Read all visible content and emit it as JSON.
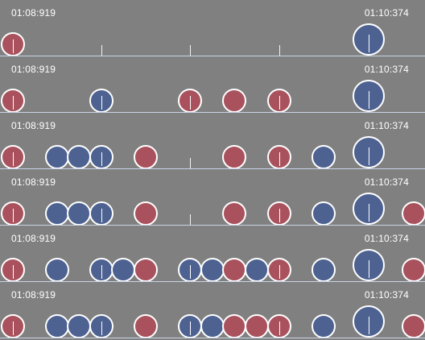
{
  "timeline": {
    "colors": {
      "red": "#a9525d",
      "blue": "#4d6291",
      "background": "#808080",
      "baseline": "#c9d4e6"
    },
    "rows": [
      {
        "start_time": "01:08:919",
        "end_time": "01:10:374",
        "markers": [
          {
            "color": "red",
            "size": "small",
            "stem": true
          },
          {
            "color": "none",
            "size": "tick"
          },
          {
            "color": "none",
            "size": "tick"
          },
          {
            "color": "none",
            "size": "tick"
          },
          {
            "color": "blue",
            "size": "large",
            "stem": true
          }
        ]
      },
      {
        "start_time": "01:08:919",
        "end_time": "01:10:374",
        "markers": [
          {
            "color": "red",
            "size": "small",
            "stem": true
          },
          {
            "color": "blue",
            "size": "small",
            "stem": true
          },
          {
            "color": "red",
            "size": "small",
            "stem": true
          },
          {
            "color": "red",
            "size": "small",
            "stem": false
          },
          {
            "color": "red",
            "size": "small",
            "stem": true
          },
          {
            "color": "blue",
            "size": "large",
            "stem": true
          }
        ]
      },
      {
        "start_time": "01:08:919",
        "end_time": "01:10:374",
        "markers": [
          {
            "color": "red",
            "size": "small",
            "stem": true
          },
          {
            "color": "blue",
            "size": "small",
            "stem": false
          },
          {
            "color": "blue",
            "size": "small",
            "stem": false
          },
          {
            "color": "blue",
            "size": "small",
            "stem": true
          },
          {
            "color": "red",
            "size": "small",
            "stem": false
          },
          {
            "color": "none",
            "size": "tick"
          },
          {
            "color": "red",
            "size": "small",
            "stem": false
          },
          {
            "color": "red",
            "size": "small",
            "stem": true
          },
          {
            "color": "blue",
            "size": "small",
            "stem": false
          },
          {
            "color": "blue",
            "size": "large",
            "stem": true
          }
        ]
      },
      {
        "start_time": "01:08:919",
        "end_time": "01:10:374",
        "markers": [
          {
            "color": "red",
            "size": "small",
            "stem": true
          },
          {
            "color": "blue",
            "size": "small",
            "stem": false
          },
          {
            "color": "blue",
            "size": "small",
            "stem": false
          },
          {
            "color": "blue",
            "size": "small",
            "stem": true
          },
          {
            "color": "red",
            "size": "small",
            "stem": false
          },
          {
            "color": "none",
            "size": "tick"
          },
          {
            "color": "red",
            "size": "small",
            "stem": false
          },
          {
            "color": "red",
            "size": "small",
            "stem": true
          },
          {
            "color": "blue",
            "size": "small",
            "stem": false
          },
          {
            "color": "blue",
            "size": "large",
            "stem": true
          },
          {
            "color": "red",
            "size": "small",
            "stem": false
          }
        ]
      },
      {
        "start_time": "01:08:919",
        "end_time": "01:10:374",
        "markers": [
          {
            "color": "red",
            "size": "small",
            "stem": true
          },
          {
            "color": "blue",
            "size": "small",
            "stem": false
          },
          {
            "color": "blue",
            "size": "small",
            "stem": true
          },
          {
            "color": "blue",
            "size": "small",
            "stem": false
          },
          {
            "color": "red",
            "size": "small",
            "stem": false
          },
          {
            "color": "blue",
            "size": "small",
            "stem": true
          },
          {
            "color": "blue",
            "size": "small",
            "stem": false
          },
          {
            "color": "red",
            "size": "small",
            "stem": false
          },
          {
            "color": "blue",
            "size": "small",
            "stem": false
          },
          {
            "color": "red",
            "size": "small",
            "stem": true
          },
          {
            "color": "blue",
            "size": "small",
            "stem": false
          },
          {
            "color": "blue",
            "size": "large",
            "stem": true
          },
          {
            "color": "red",
            "size": "small",
            "stem": false
          }
        ]
      },
      {
        "start_time": "01:08:919",
        "end_time": "01:10:374",
        "markers": [
          {
            "color": "red",
            "size": "small",
            "stem": true
          },
          {
            "color": "blue",
            "size": "small",
            "stem": false
          },
          {
            "color": "blue",
            "size": "small",
            "stem": false
          },
          {
            "color": "blue",
            "size": "small",
            "stem": true
          },
          {
            "color": "red",
            "size": "small",
            "stem": false
          },
          {
            "color": "blue",
            "size": "small",
            "stem": true
          },
          {
            "color": "blue",
            "size": "small",
            "stem": false
          },
          {
            "color": "red",
            "size": "small",
            "stem": false
          },
          {
            "color": "red",
            "size": "small",
            "stem": false
          },
          {
            "color": "red",
            "size": "small",
            "stem": true
          },
          {
            "color": "blue",
            "size": "small",
            "stem": false
          },
          {
            "color": "blue",
            "size": "large",
            "stem": true
          },
          {
            "color": "red",
            "size": "small",
            "stem": false
          }
        ]
      }
    ]
  }
}
